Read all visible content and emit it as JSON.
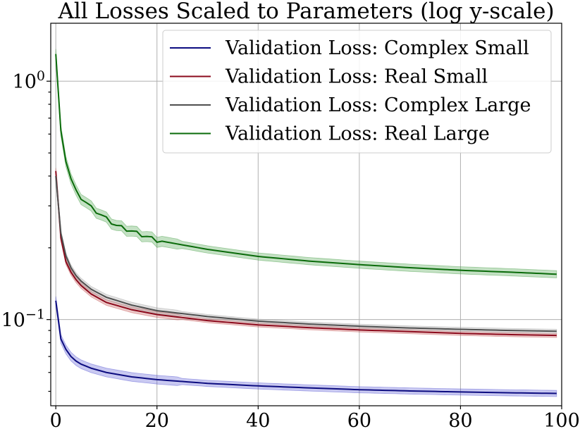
{
  "chart_data": {
    "type": "line",
    "title": "All Losses Scaled to Parameters (log y-scale)",
    "xlabel": "",
    "ylabel": "",
    "xlim": [
      -1,
      100
    ],
    "ylim": [
      0.0435,
      1.75
    ],
    "yscale": "log",
    "grid": true,
    "legend_position": "top-right",
    "x_ticks": [
      {
        "value": 0,
        "label": "0"
      },
      {
        "value": 20,
        "label": "20"
      },
      {
        "value": 40,
        "label": "40"
      },
      {
        "value": 60,
        "label": "60"
      },
      {
        "value": 80,
        "label": "80"
      },
      {
        "value": 100,
        "label": "100"
      }
    ],
    "y_ticks": [
      {
        "value": 1.0,
        "base": "10",
        "exp": "0"
      },
      {
        "value": 0.1,
        "base": "10",
        "exp": "−1"
      }
    ],
    "y_minor_ticks": [
      0.05,
      0.06,
      0.07,
      0.08,
      0.09,
      0.2,
      0.3,
      0.4,
      0.5,
      0.6,
      0.7,
      0.8,
      0.9
    ],
    "series": [
      {
        "name": "Validation Loss: Complex Small",
        "color": "#0c0c80",
        "band_color": "#4b4bd1",
        "band_pct": 0.03,
        "anchors": [
          [
            0,
            0.12
          ],
          [
            1,
            0.083
          ],
          [
            2,
            0.075
          ],
          [
            3,
            0.07
          ],
          [
            4,
            0.067
          ],
          [
            5,
            0.065
          ],
          [
            7,
            0.0625
          ],
          [
            10,
            0.06
          ],
          [
            15,
            0.0575
          ],
          [
            20,
            0.056
          ],
          [
            30,
            0.054
          ],
          [
            40,
            0.0527
          ],
          [
            50,
            0.0517
          ],
          [
            60,
            0.0508
          ],
          [
            70,
            0.0502
          ],
          [
            80,
            0.0497
          ],
          [
            90,
            0.0493
          ],
          [
            99,
            0.049
          ]
        ]
      },
      {
        "name": "Validation Loss: Real Small",
        "color": "#8b0a1c",
        "band_color": "#c04a4a",
        "band_pct": 0.02,
        "anchors": [
          [
            0,
            0.42
          ],
          [
            1,
            0.22
          ],
          [
            2,
            0.175
          ],
          [
            3,
            0.158
          ],
          [
            4,
            0.147
          ],
          [
            5,
            0.139
          ],
          [
            7,
            0.128
          ],
          [
            10,
            0.118
          ],
          [
            15,
            0.11
          ],
          [
            20,
            0.105
          ],
          [
            30,
            0.099
          ],
          [
            40,
            0.095
          ],
          [
            50,
            0.0925
          ],
          [
            60,
            0.0905
          ],
          [
            70,
            0.089
          ],
          [
            80,
            0.0875
          ],
          [
            90,
            0.0865
          ],
          [
            99,
            0.0858
          ]
        ]
      },
      {
        "name": "Validation Loss: Complex Large",
        "color": "#4f4f4f",
        "band_color": "#9a9a9a",
        "band_pct": 0.02,
        "anchors": [
          [
            0,
            0.4
          ],
          [
            1,
            0.23
          ],
          [
            2,
            0.185
          ],
          [
            3,
            0.165
          ],
          [
            4,
            0.153
          ],
          [
            5,
            0.145
          ],
          [
            7,
            0.134
          ],
          [
            10,
            0.124
          ],
          [
            15,
            0.115
          ],
          [
            20,
            0.109
          ],
          [
            30,
            0.103
          ],
          [
            40,
            0.0985
          ],
          [
            50,
            0.0958
          ],
          [
            60,
            0.0938
          ],
          [
            70,
            0.0922
          ],
          [
            80,
            0.091
          ],
          [
            90,
            0.09
          ],
          [
            99,
            0.0893
          ]
        ]
      },
      {
        "name": "Validation Loss: Real Large",
        "color": "#0a6b0a",
        "band_color": "#3d9a3d",
        "band_pct": 0.035,
        "anchors": [
          [
            0,
            1.3
          ],
          [
            1,
            0.62
          ],
          [
            2,
            0.46
          ],
          [
            3,
            0.39
          ],
          [
            4,
            0.35
          ],
          [
            5,
            0.325
          ],
          [
            7,
            0.295
          ],
          [
            10,
            0.265
          ],
          [
            12,
            0.248
          ],
          [
            15,
            0.235
          ],
          [
            20,
            0.215
          ],
          [
            30,
            0.197
          ],
          [
            40,
            0.184
          ],
          [
            50,
            0.176
          ],
          [
            60,
            0.17
          ],
          [
            70,
            0.165
          ],
          [
            80,
            0.161
          ],
          [
            90,
            0.158
          ],
          [
            99,
            0.155
          ]
        ]
      }
    ]
  }
}
